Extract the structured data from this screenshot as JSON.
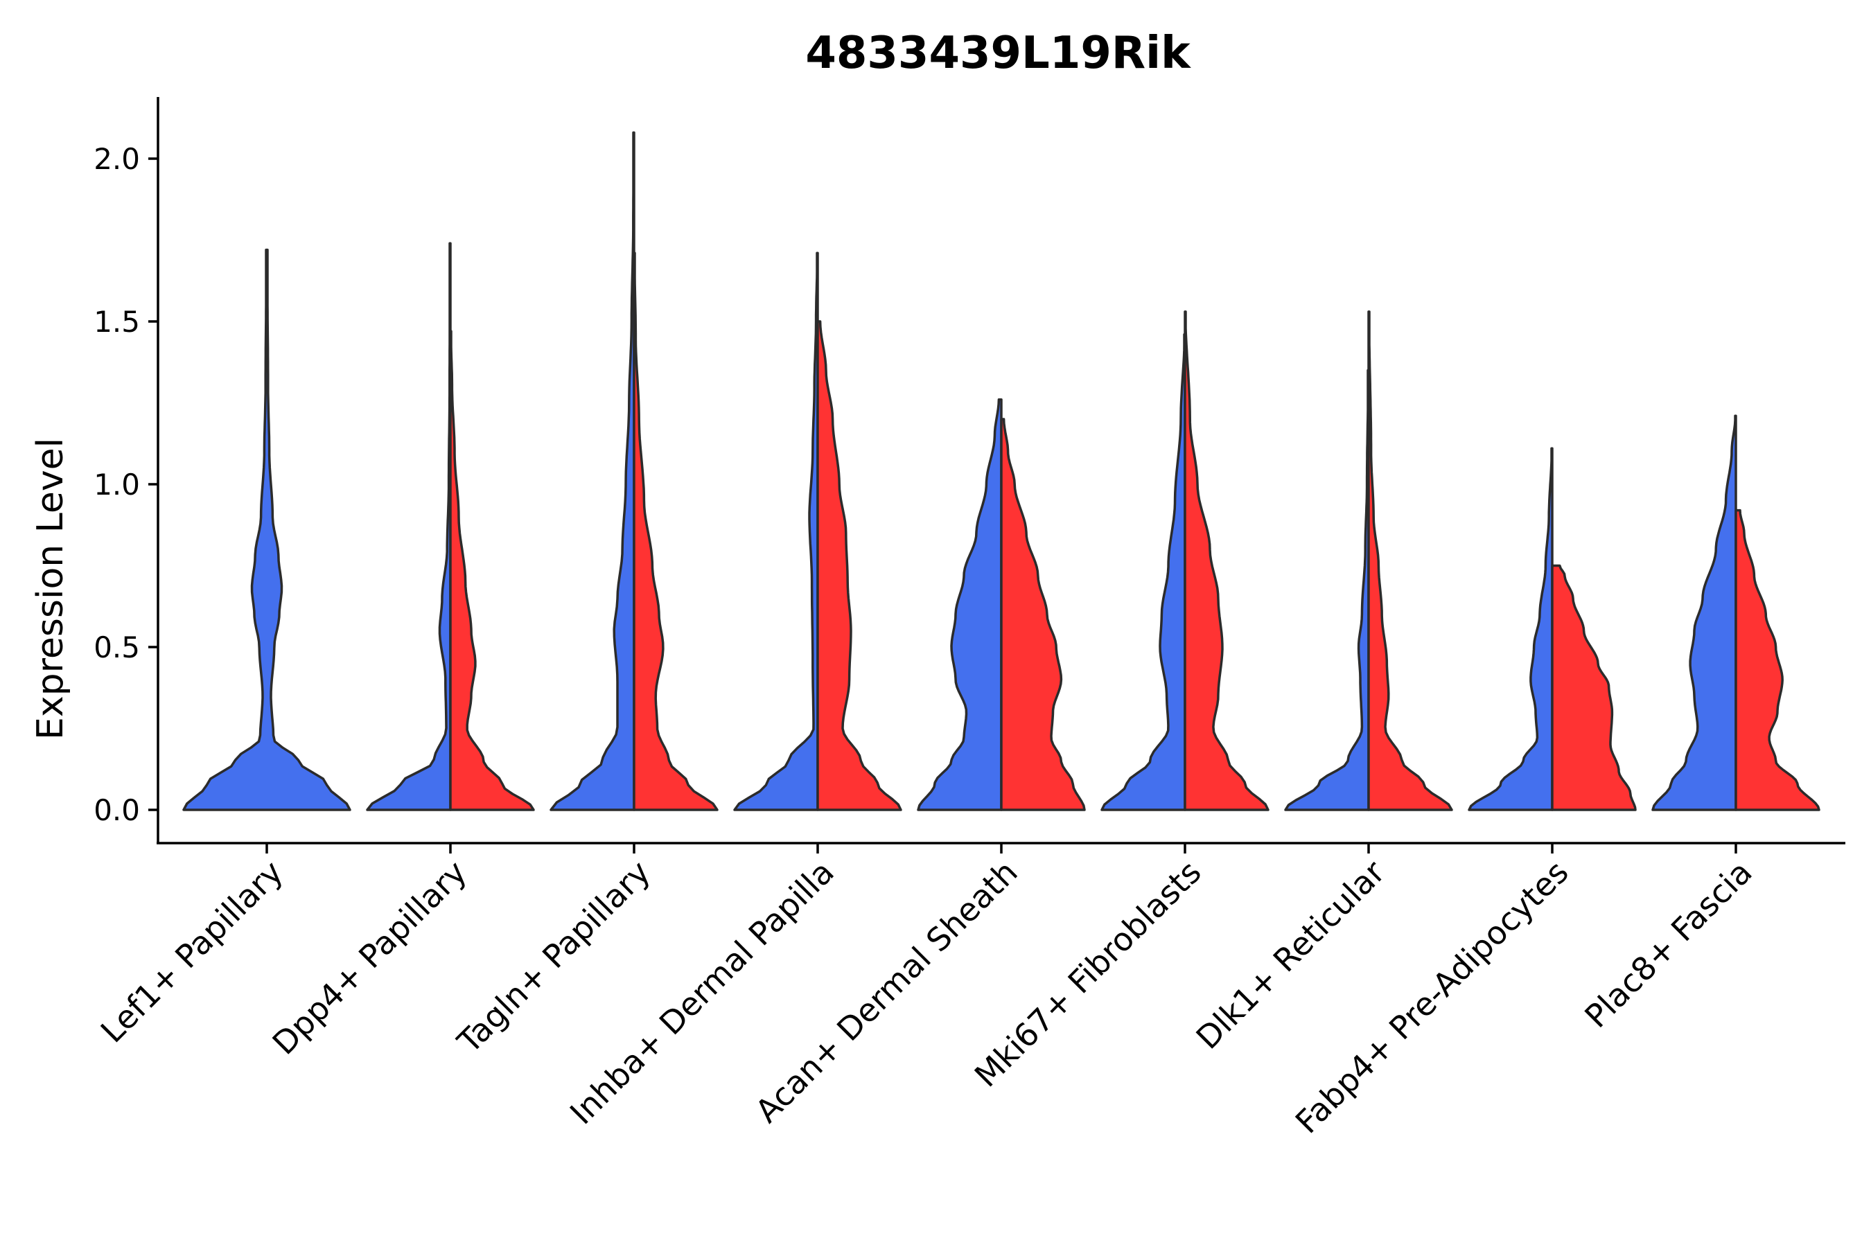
{
  "chart_data": {
    "type": "violin",
    "title": "4833439L19Rik",
    "xlabel": "",
    "ylabel": "Expression Level",
    "ylim": [
      -0.105,
      2.19
    ],
    "yticks": [
      0.0,
      0.5,
      1.0,
      1.5,
      2.0
    ],
    "ytick_labels": [
      "0.0",
      "0.5",
      "1.0",
      "1.5",
      "2.0"
    ],
    "colors": {
      "blue": "#4470ee",
      "red": "#ff3333"
    },
    "categories": [
      "Lef1+ Papillary",
      "Dpp4+ Papillary",
      "Tagln+ Papillary",
      "Inhba+ Dermal Papilla",
      "Acan+ Dermal Sheath",
      "Mki67+ Fibroblasts",
      "Dlk1+ Reticular",
      "Fabp4+ Pre-Adipocytes",
      "Plac8+ Fascia"
    ],
    "violins": [
      {
        "category": "Lef1+ Papillary",
        "color": "blue",
        "max": 1.72,
        "profile": [
          [
            0,
            1
          ],
          [
            0.08,
            0.72
          ],
          [
            0.15,
            0.38
          ],
          [
            0.22,
            0.08
          ],
          [
            0.35,
            0.05
          ],
          [
            0.5,
            0.09
          ],
          [
            0.6,
            0.15
          ],
          [
            0.68,
            0.18
          ],
          [
            0.78,
            0.14
          ],
          [
            0.9,
            0.07
          ],
          [
            1.1,
            0.03
          ],
          [
            1.3,
            0.015
          ],
          [
            1.72,
            0.004
          ]
        ]
      }
    ],
    "split_violins": [
      {
        "category": "Dpp4+ Papillary",
        "blue": {
          "max": 1.74,
          "profile": [
            [
              0,
              1
            ],
            [
              0.08,
              0.6
            ],
            [
              0.15,
              0.2
            ],
            [
              0.25,
              0.05
            ],
            [
              0.4,
              0.06
            ],
            [
              0.55,
              0.13
            ],
            [
              0.65,
              0.1
            ],
            [
              0.8,
              0.04
            ],
            [
              1.0,
              0.02
            ],
            [
              1.3,
              0.01
            ],
            [
              1.74,
              0.004
            ]
          ]
        },
        "red": {
          "max": 1.47,
          "profile": [
            [
              0,
              1
            ],
            [
              0.08,
              0.62
            ],
            [
              0.15,
              0.4
            ],
            [
              0.25,
              0.2
            ],
            [
              0.35,
              0.25
            ],
            [
              0.45,
              0.3
            ],
            [
              0.55,
              0.25
            ],
            [
              0.7,
              0.18
            ],
            [
              0.9,
              0.1
            ],
            [
              1.1,
              0.05
            ],
            [
              1.3,
              0.02
            ],
            [
              1.47,
              0.005
            ]
          ]
        }
      },
      {
        "category": "Tagln+ Papillary",
        "blue": {
          "max": 2.08,
          "profile": [
            [
              0,
              1
            ],
            [
              0.08,
              0.65
            ],
            [
              0.15,
              0.38
            ],
            [
              0.25,
              0.2
            ],
            [
              0.4,
              0.2
            ],
            [
              0.55,
              0.24
            ],
            [
              0.65,
              0.2
            ],
            [
              0.8,
              0.14
            ],
            [
              1.0,
              0.1
            ],
            [
              1.25,
              0.06
            ],
            [
              1.5,
              0.03
            ],
            [
              1.8,
              0.01
            ],
            [
              2.08,
              0.004
            ]
          ]
        },
        "red": {
          "max": 1.71,
          "profile": [
            [
              0,
              1
            ],
            [
              0.08,
              0.65
            ],
            [
              0.15,
              0.42
            ],
            [
              0.25,
              0.28
            ],
            [
              0.35,
              0.26
            ],
            [
              0.5,
              0.35
            ],
            [
              0.6,
              0.3
            ],
            [
              0.75,
              0.22
            ],
            [
              0.95,
              0.12
            ],
            [
              1.2,
              0.06
            ],
            [
              1.45,
              0.02
            ],
            [
              1.71,
              0.005
            ]
          ]
        }
      },
      {
        "category": "Inhba+ Dermal Papilla",
        "blue": {
          "max": 1.71,
          "profile": [
            [
              0,
              1
            ],
            [
              0.08,
              0.62
            ],
            [
              0.15,
              0.35
            ],
            [
              0.25,
              0.05
            ],
            [
              0.45,
              0.06
            ],
            [
              0.7,
              0.07
            ],
            [
              0.9,
              0.1
            ],
            [
              1.1,
              0.06
            ],
            [
              1.3,
              0.04
            ],
            [
              1.5,
              0.02
            ],
            [
              1.71,
              0.005
            ]
          ]
        },
        "red": {
          "max": 1.5,
          "profile": [
            [
              0,
              1
            ],
            [
              0.08,
              0.72
            ],
            [
              0.15,
              0.52
            ],
            [
              0.25,
              0.3
            ],
            [
              0.4,
              0.38
            ],
            [
              0.55,
              0.4
            ],
            [
              0.7,
              0.36
            ],
            [
              0.85,
              0.34
            ],
            [
              1.0,
              0.26
            ],
            [
              1.2,
              0.18
            ],
            [
              1.35,
              0.1
            ],
            [
              1.5,
              0.03
            ]
          ]
        }
      },
      {
        "category": "Acan+ Dermal Sheath",
        "blue": {
          "max": 1.26,
          "profile": [
            [
              0,
              1
            ],
            [
              0.08,
              0.8
            ],
            [
              0.15,
              0.6
            ],
            [
              0.22,
              0.45
            ],
            [
              0.3,
              0.42
            ],
            [
              0.4,
              0.55
            ],
            [
              0.5,
              0.6
            ],
            [
              0.6,
              0.55
            ],
            [
              0.72,
              0.45
            ],
            [
              0.85,
              0.3
            ],
            [
              1.0,
              0.18
            ],
            [
              1.15,
              0.08
            ],
            [
              1.26,
              0.03
            ]
          ]
        },
        "red": {
          "max": 1.2,
          "profile": [
            [
              0,
              1
            ],
            [
              0.08,
              0.86
            ],
            [
              0.15,
              0.72
            ],
            [
              0.22,
              0.6
            ],
            [
              0.3,
              0.62
            ],
            [
              0.4,
              0.72
            ],
            [
              0.5,
              0.66
            ],
            [
              0.6,
              0.55
            ],
            [
              0.72,
              0.44
            ],
            [
              0.85,
              0.3
            ],
            [
              1.0,
              0.16
            ],
            [
              1.1,
              0.08
            ],
            [
              1.2,
              0.03
            ]
          ]
        }
      },
      {
        "category": "Mki67+ Fibroblasts",
        "blue": {
          "max": 1.46,
          "profile": [
            [
              0,
              1
            ],
            [
              0.08,
              0.7
            ],
            [
              0.15,
              0.42
            ],
            [
              0.25,
              0.2
            ],
            [
              0.35,
              0.22
            ],
            [
              0.5,
              0.3
            ],
            [
              0.6,
              0.28
            ],
            [
              0.75,
              0.2
            ],
            [
              0.95,
              0.12
            ],
            [
              1.2,
              0.05
            ],
            [
              1.46,
              0.005
            ]
          ]
        },
        "red": {
          "max": 1.53,
          "profile": [
            [
              0,
              1
            ],
            [
              0.08,
              0.72
            ],
            [
              0.15,
              0.52
            ],
            [
              0.25,
              0.34
            ],
            [
              0.35,
              0.4
            ],
            [
              0.5,
              0.45
            ],
            [
              0.65,
              0.4
            ],
            [
              0.8,
              0.3
            ],
            [
              1.0,
              0.15
            ],
            [
              1.2,
              0.06
            ],
            [
              1.53,
              0.005
            ]
          ]
        }
      },
      {
        "category": "Dlk1+ Reticular",
        "blue": {
          "max": 1.35,
          "profile": [
            [
              0,
              1
            ],
            [
              0.08,
              0.6
            ],
            [
              0.15,
              0.25
            ],
            [
              0.25,
              0.08
            ],
            [
              0.4,
              0.1
            ],
            [
              0.5,
              0.12
            ],
            [
              0.6,
              0.08
            ],
            [
              0.8,
              0.04
            ],
            [
              1.0,
              0.02
            ],
            [
              1.35,
              0.004
            ]
          ]
        },
        "red": {
          "max": 1.53,
          "profile": [
            [
              0,
              1
            ],
            [
              0.08,
              0.66
            ],
            [
              0.15,
              0.4
            ],
            [
              0.25,
              0.2
            ],
            [
              0.35,
              0.24
            ],
            [
              0.45,
              0.22
            ],
            [
              0.6,
              0.16
            ],
            [
              0.75,
              0.12
            ],
            [
              0.9,
              0.06
            ],
            [
              1.1,
              0.03
            ],
            [
              1.53,
              0.005
            ]
          ]
        }
      },
      {
        "category": "Fabp4+ Pre-Adipocytes",
        "blue": {
          "max": 1.11,
          "profile": [
            [
              0,
              1
            ],
            [
              0.08,
              0.62
            ],
            [
              0.15,
              0.35
            ],
            [
              0.22,
              0.18
            ],
            [
              0.3,
              0.2
            ],
            [
              0.4,
              0.26
            ],
            [
              0.5,
              0.22
            ],
            [
              0.6,
              0.15
            ],
            [
              0.75,
              0.08
            ],
            [
              0.9,
              0.04
            ],
            [
              1.11,
              0.005
            ]
          ]
        },
        "red": {
          "max": 0.75,
          "profile": [
            [
              0,
              1
            ],
            [
              0.05,
              0.94
            ],
            [
              0.12,
              0.8
            ],
            [
              0.2,
              0.7
            ],
            [
              0.3,
              0.72
            ],
            [
              0.38,
              0.68
            ],
            [
              0.45,
              0.55
            ],
            [
              0.55,
              0.38
            ],
            [
              0.65,
              0.25
            ],
            [
              0.72,
              0.15
            ],
            [
              0.75,
              0.09
            ]
          ]
        }
      },
      {
        "category": "Plac8+ Fascia",
        "blue": {
          "max": 1.21,
          "profile": [
            [
              0,
              1
            ],
            [
              0.08,
              0.78
            ],
            [
              0.15,
              0.6
            ],
            [
              0.25,
              0.46
            ],
            [
              0.35,
              0.5
            ],
            [
              0.45,
              0.55
            ],
            [
              0.55,
              0.5
            ],
            [
              0.65,
              0.4
            ],
            [
              0.8,
              0.24
            ],
            [
              0.95,
              0.12
            ],
            [
              1.1,
              0.05
            ],
            [
              1.21,
              0.005
            ]
          ]
        },
        "red": {
          "max": 0.92,
          "profile": [
            [
              0,
              1
            ],
            [
              0.08,
              0.74
            ],
            [
              0.15,
              0.48
            ],
            [
              0.22,
              0.4
            ],
            [
              0.3,
              0.5
            ],
            [
              0.4,
              0.56
            ],
            [
              0.5,
              0.48
            ],
            [
              0.6,
              0.36
            ],
            [
              0.72,
              0.22
            ],
            [
              0.85,
              0.1
            ],
            [
              0.92,
              0.05
            ]
          ]
        }
      }
    ]
  }
}
